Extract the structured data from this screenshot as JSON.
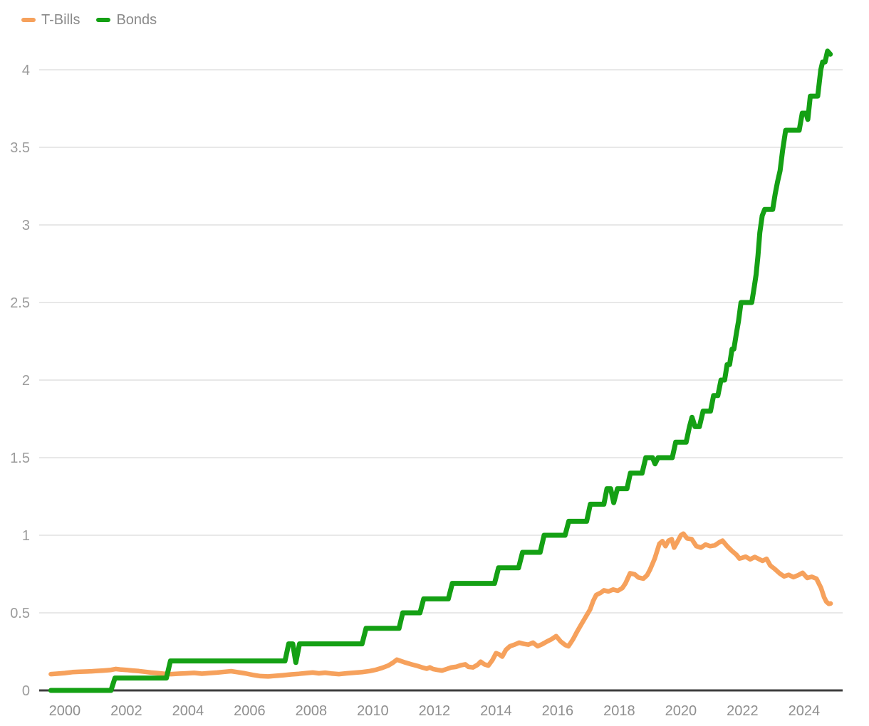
{
  "legend": {
    "items": [
      {
        "label": "T-Bills",
        "color": "#f6a15c"
      },
      {
        "label": "Bonds",
        "color": "#14a014"
      }
    ]
  },
  "chart_data": {
    "type": "line",
    "title": "",
    "xlabel": "",
    "ylabel": "",
    "grid": true,
    "legend_position": "top-left",
    "colors": {
      "grid": "#e8e8e8",
      "axis_line": "#3d3d3d",
      "tick_text": "#999999",
      "background": "#ffffff"
    },
    "x_axis": {
      "tick_labels": [
        "2000",
        "2002",
        "2004",
        "2006",
        "2008",
        "2010",
        "2012",
        "2014",
        "2016",
        "2018",
        "2020",
        "2022",
        "2024"
      ],
      "tick_years": [
        2000,
        2002,
        2004,
        2006,
        2008,
        2010,
        2012,
        2014,
        2016,
        2018,
        2020,
        2022,
        2024
      ],
      "range": [
        1999.17,
        2025.25
      ]
    },
    "y_axis": {
      "tick_labels": [
        "0",
        "0.5",
        "1",
        "1.5",
        "2",
        "2.5",
        "3",
        "3.5",
        "4"
      ],
      "tick_values": [
        0,
        0.5,
        1,
        1.5,
        2,
        2.5,
        3,
        3.5,
        4
      ],
      "range": [
        0,
        4.3
      ]
    },
    "series": [
      {
        "name": "T-Bills",
        "color": "#f6a15c",
        "stroke_width": 6.5,
        "points": [
          [
            1999.55,
            0.105
          ],
          [
            1999.75,
            0.108
          ],
          [
            2000.0,
            0.112
          ],
          [
            2000.25,
            0.118
          ],
          [
            2000.5,
            0.12
          ],
          [
            2000.75,
            0.122
          ],
          [
            2001.0,
            0.125
          ],
          [
            2001.25,
            0.128
          ],
          [
            2001.5,
            0.132
          ],
          [
            2001.65,
            0.138
          ],
          [
            2001.8,
            0.135
          ],
          [
            2002.0,
            0.132
          ],
          [
            2002.2,
            0.128
          ],
          [
            2002.4,
            0.125
          ],
          [
            2002.6,
            0.12
          ],
          [
            2002.8,
            0.115
          ],
          [
            2003.0,
            0.112
          ],
          [
            2003.2,
            0.108
          ],
          [
            2003.45,
            0.105
          ],
          [
            2003.7,
            0.108
          ],
          [
            2003.95,
            0.11
          ],
          [
            2004.2,
            0.113
          ],
          [
            2004.45,
            0.108
          ],
          [
            2004.7,
            0.112
          ],
          [
            2004.95,
            0.115
          ],
          [
            2005.2,
            0.12
          ],
          [
            2005.4,
            0.124
          ],
          [
            2005.6,
            0.118
          ],
          [
            2005.85,
            0.11
          ],
          [
            2006.1,
            0.1
          ],
          [
            2006.35,
            0.092
          ],
          [
            2006.6,
            0.09
          ],
          [
            2006.85,
            0.094
          ],
          [
            2007.1,
            0.098
          ],
          [
            2007.35,
            0.103
          ],
          [
            2007.6,
            0.107
          ],
          [
            2007.85,
            0.112
          ],
          [
            2008.05,
            0.115
          ],
          [
            2008.25,
            0.11
          ],
          [
            2008.45,
            0.114
          ],
          [
            2008.65,
            0.109
          ],
          [
            2008.9,
            0.105
          ],
          [
            2009.15,
            0.11
          ],
          [
            2009.4,
            0.114
          ],
          [
            2009.65,
            0.118
          ],
          [
            2009.9,
            0.125
          ],
          [
            2010.1,
            0.133
          ],
          [
            2010.3,
            0.145
          ],
          [
            2010.5,
            0.16
          ],
          [
            2010.65,
            0.178
          ],
          [
            2010.78,
            0.198
          ],
          [
            2010.9,
            0.19
          ],
          [
            2011.05,
            0.18
          ],
          [
            2011.25,
            0.168
          ],
          [
            2011.45,
            0.158
          ],
          [
            2011.6,
            0.148
          ],
          [
            2011.75,
            0.14
          ],
          [
            2011.85,
            0.148
          ],
          [
            2011.95,
            0.138
          ],
          [
            2012.1,
            0.132
          ],
          [
            2012.25,
            0.128
          ],
          [
            2012.4,
            0.138
          ],
          [
            2012.55,
            0.148
          ],
          [
            2012.7,
            0.152
          ],
          [
            2012.85,
            0.162
          ],
          [
            2013.0,
            0.168
          ],
          [
            2013.1,
            0.152
          ],
          [
            2013.25,
            0.148
          ],
          [
            2013.4,
            0.165
          ],
          [
            2013.5,
            0.185
          ],
          [
            2013.62,
            0.168
          ],
          [
            2013.75,
            0.16
          ],
          [
            2013.88,
            0.195
          ],
          [
            2014.0,
            0.24
          ],
          [
            2014.1,
            0.232
          ],
          [
            2014.2,
            0.218
          ],
          [
            2014.32,
            0.262
          ],
          [
            2014.45,
            0.285
          ],
          [
            2014.6,
            0.295
          ],
          [
            2014.75,
            0.308
          ],
          [
            2014.9,
            0.3
          ],
          [
            2015.05,
            0.295
          ],
          [
            2015.2,
            0.308
          ],
          [
            2015.35,
            0.285
          ],
          [
            2015.5,
            0.298
          ],
          [
            2015.65,
            0.315
          ],
          [
            2015.8,
            0.33
          ],
          [
            2015.95,
            0.35
          ],
          [
            2016.1,
            0.315
          ],
          [
            2016.25,
            0.292
          ],
          [
            2016.35,
            0.285
          ],
          [
            2016.5,
            0.33
          ],
          [
            2016.62,
            0.375
          ],
          [
            2016.75,
            0.42
          ],
          [
            2016.9,
            0.47
          ],
          [
            2017.05,
            0.52
          ],
          [
            2017.15,
            0.575
          ],
          [
            2017.25,
            0.615
          ],
          [
            2017.4,
            0.63
          ],
          [
            2017.5,
            0.645
          ],
          [
            2017.65,
            0.638
          ],
          [
            2017.8,
            0.65
          ],
          [
            2017.95,
            0.642
          ],
          [
            2018.1,
            0.66
          ],
          [
            2018.2,
            0.69
          ],
          [
            2018.35,
            0.755
          ],
          [
            2018.5,
            0.748
          ],
          [
            2018.62,
            0.728
          ],
          [
            2018.78,
            0.72
          ],
          [
            2018.9,
            0.742
          ],
          [
            2019.0,
            0.78
          ],
          [
            2019.15,
            0.85
          ],
          [
            2019.3,
            0.945
          ],
          [
            2019.4,
            0.962
          ],
          [
            2019.5,
            0.93
          ],
          [
            2019.6,
            0.965
          ],
          [
            2019.7,
            0.975
          ],
          [
            2019.78,
            0.92
          ],
          [
            2019.88,
            0.955
          ],
          [
            2020.0,
            1.0
          ],
          [
            2020.08,
            1.01
          ],
          [
            2020.2,
            0.98
          ],
          [
            2020.35,
            0.975
          ],
          [
            2020.5,
            0.93
          ],
          [
            2020.65,
            0.92
          ],
          [
            2020.8,
            0.94
          ],
          [
            2020.95,
            0.93
          ],
          [
            2021.1,
            0.935
          ],
          [
            2021.25,
            0.955
          ],
          [
            2021.35,
            0.965
          ],
          [
            2021.5,
            0.93
          ],
          [
            2021.65,
            0.9
          ],
          [
            2021.8,
            0.875
          ],
          [
            2021.9,
            0.85
          ],
          [
            2022.0,
            0.855
          ],
          [
            2022.1,
            0.862
          ],
          [
            2022.25,
            0.845
          ],
          [
            2022.4,
            0.86
          ],
          [
            2022.55,
            0.845
          ],
          [
            2022.65,
            0.835
          ],
          [
            2022.78,
            0.848
          ],
          [
            2022.9,
            0.805
          ],
          [
            2023.05,
            0.782
          ],
          [
            2023.2,
            0.755
          ],
          [
            2023.35,
            0.735
          ],
          [
            2023.5,
            0.745
          ],
          [
            2023.65,
            0.73
          ],
          [
            2023.8,
            0.742
          ],
          [
            2023.95,
            0.758
          ],
          [
            2024.1,
            0.725
          ],
          [
            2024.25,
            0.732
          ],
          [
            2024.4,
            0.72
          ],
          [
            2024.55,
            0.66
          ],
          [
            2024.65,
            0.6
          ],
          [
            2024.72,
            0.572
          ],
          [
            2024.8,
            0.558
          ],
          [
            2024.86,
            0.56
          ]
        ]
      },
      {
        "name": "Bonds",
        "color": "#14a014",
        "stroke_width": 7,
        "points": [
          [
            1999.55,
            0
          ],
          [
            2001.5,
            0
          ],
          [
            2001.63,
            0.08
          ],
          [
            2003.3,
            0.08
          ],
          [
            2003.43,
            0.19
          ],
          [
            2007.15,
            0.19
          ],
          [
            2007.27,
            0.3
          ],
          [
            2007.4,
            0.3
          ],
          [
            2007.5,
            0.18
          ],
          [
            2007.62,
            0.3
          ],
          [
            2009.65,
            0.3
          ],
          [
            2009.78,
            0.4
          ],
          [
            2010.85,
            0.4
          ],
          [
            2010.97,
            0.5
          ],
          [
            2011.53,
            0.5
          ],
          [
            2011.65,
            0.59
          ],
          [
            2012.45,
            0.59
          ],
          [
            2012.58,
            0.69
          ],
          [
            2013.95,
            0.69
          ],
          [
            2014.08,
            0.79
          ],
          [
            2014.73,
            0.79
          ],
          [
            2014.86,
            0.89
          ],
          [
            2015.43,
            0.89
          ],
          [
            2015.56,
            1.0
          ],
          [
            2016.24,
            1.0
          ],
          [
            2016.36,
            1.09
          ],
          [
            2016.94,
            1.09
          ],
          [
            2017.06,
            1.2
          ],
          [
            2017.5,
            1.2
          ],
          [
            2017.6,
            1.3
          ],
          [
            2017.72,
            1.3
          ],
          [
            2017.82,
            1.21
          ],
          [
            2017.94,
            1.3
          ],
          [
            2018.25,
            1.3
          ],
          [
            2018.36,
            1.4
          ],
          [
            2018.74,
            1.4
          ],
          [
            2018.86,
            1.5
          ],
          [
            2019.08,
            1.5
          ],
          [
            2019.16,
            1.46
          ],
          [
            2019.26,
            1.5
          ],
          [
            2019.72,
            1.5
          ],
          [
            2019.83,
            1.6
          ],
          [
            2020.17,
            1.6
          ],
          [
            2020.28,
            1.7
          ],
          [
            2020.36,
            1.76
          ],
          [
            2020.46,
            1.7
          ],
          [
            2020.6,
            1.7
          ],
          [
            2020.72,
            1.8
          ],
          [
            2020.96,
            1.8
          ],
          [
            2021.06,
            1.9
          ],
          [
            2021.2,
            1.9
          ],
          [
            2021.3,
            2.0
          ],
          [
            2021.42,
            2.0
          ],
          [
            2021.5,
            2.1
          ],
          [
            2021.58,
            2.1
          ],
          [
            2021.66,
            2.2
          ],
          [
            2021.72,
            2.2
          ],
          [
            2021.8,
            2.3
          ],
          [
            2021.87,
            2.38
          ],
          [
            2021.95,
            2.5
          ],
          [
            2022.3,
            2.5
          ],
          [
            2022.38,
            2.6
          ],
          [
            2022.44,
            2.68
          ],
          [
            2022.5,
            2.8
          ],
          [
            2022.56,
            2.95
          ],
          [
            2022.64,
            3.06
          ],
          [
            2022.72,
            3.1
          ],
          [
            2022.98,
            3.1
          ],
          [
            2023.06,
            3.2
          ],
          [
            2023.14,
            3.28
          ],
          [
            2023.22,
            3.35
          ],
          [
            2023.3,
            3.48
          ],
          [
            2023.4,
            3.61
          ],
          [
            2023.84,
            3.61
          ],
          [
            2023.94,
            3.72
          ],
          [
            2024.06,
            3.72
          ],
          [
            2024.12,
            3.68
          ],
          [
            2024.2,
            3.83
          ],
          [
            2024.44,
            3.83
          ],
          [
            2024.54,
            4.0
          ],
          [
            2024.6,
            4.05
          ],
          [
            2024.68,
            4.05
          ],
          [
            2024.76,
            4.12
          ],
          [
            2024.85,
            4.1
          ]
        ]
      }
    ]
  }
}
